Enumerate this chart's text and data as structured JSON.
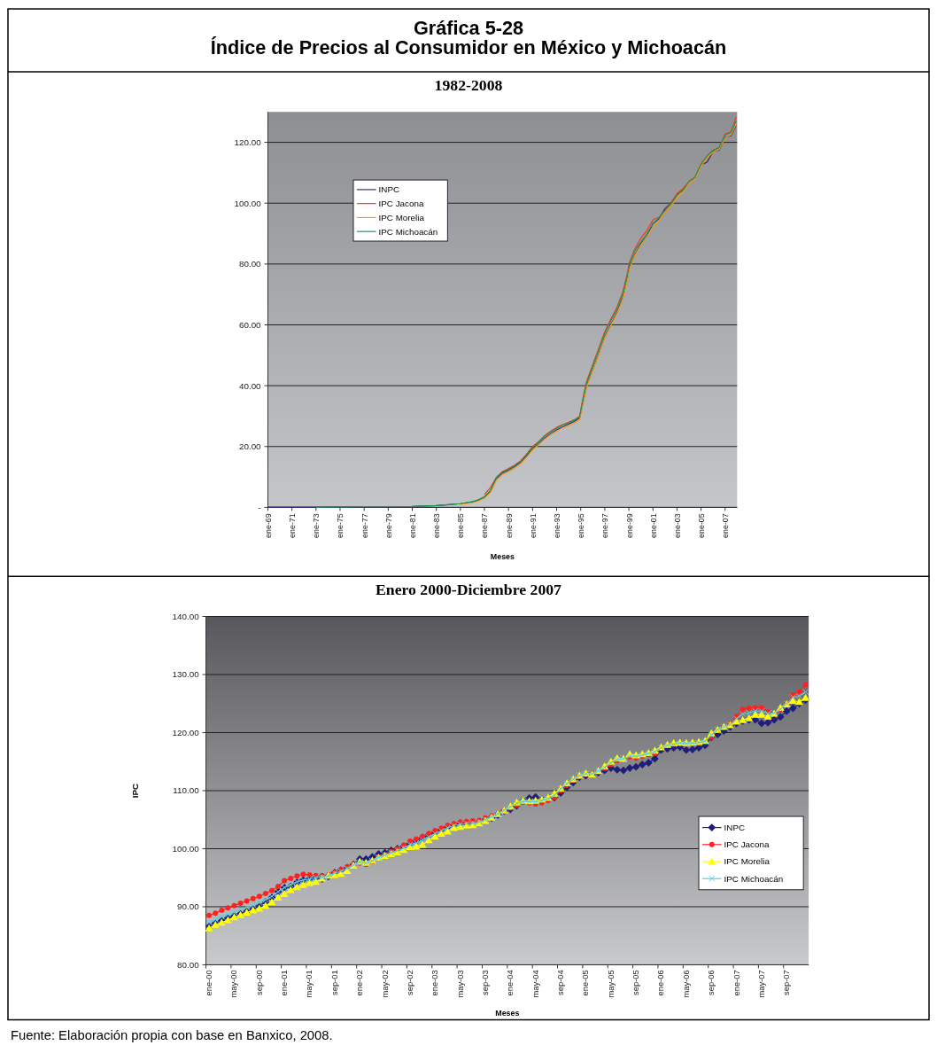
{
  "chart_data": [
    {
      "type": "line",
      "title": "Gráfica 5-28\nÍndice de Precios al Consumidor en México y Michoacán",
      "subtitle": "1982-2008",
      "xlabel": "Meses",
      "xlim": [
        "1969-01",
        "2008-01"
      ],
      "xticks": [
        {
          "value": "1969-01",
          "label": "ene-69"
        },
        {
          "value": "1971-01",
          "label": "ene-71"
        },
        {
          "value": "1973-01",
          "label": "ene-73"
        },
        {
          "value": "1975-01",
          "label": "ene-75"
        },
        {
          "value": "1977-01",
          "label": "ene-77"
        },
        {
          "value": "1979-01",
          "label": "ene-79"
        },
        {
          "value": "1981-01",
          "label": "ene-81"
        },
        {
          "value": "1983-01",
          "label": "ene-83"
        },
        {
          "value": "1985-01",
          "label": "ene-85"
        },
        {
          "value": "1987-01",
          "label": "ene-87"
        },
        {
          "value": "1989-01",
          "label": "ene-89"
        },
        {
          "value": "1991-01",
          "label": "ene-91"
        },
        {
          "value": "1993-01",
          "label": "ene-93"
        },
        {
          "value": "1995-01",
          "label": "ene-95"
        },
        {
          "value": "1997-01",
          "label": "ene-97"
        },
        {
          "value": "1999-01",
          "label": "ene-99"
        },
        {
          "value": "2001-01",
          "label": "ene-01"
        },
        {
          "value": "2003-01",
          "label": "ene-03"
        },
        {
          "value": "2005-01",
          "label": "ene-05"
        },
        {
          "value": "2007-01",
          "label": "ene-07"
        }
      ],
      "ylim": [
        0,
        130
      ],
      "yticks": [
        {
          "value": 0,
          "label": "-"
        },
        {
          "value": 20,
          "label": "20.00"
        },
        {
          "value": 40,
          "label": "40.00"
        },
        {
          "value": 60,
          "label": "60.00"
        },
        {
          "value": 80,
          "label": "80.00"
        },
        {
          "value": 100,
          "label": "100.00"
        },
        {
          "value": 120,
          "label": "120.00"
        }
      ],
      "grid": "y",
      "legend": "top left",
      "series": [
        {
          "name": "INPC",
          "color": "#2b2b8c",
          "x": [
            "1969-01",
            "1973-01",
            "1977-01",
            "1981-01",
            "1983-01",
            "1984-01",
            "1985-01",
            "1986-01",
            "1986-07",
            "1987-01",
            "1987-07",
            "1988-01",
            "1988-07",
            "1989-01",
            "1989-07",
            "1990-01",
            "1990-07",
            "1991-01",
            "1991-07",
            "1992-01",
            "1992-07",
            "1993-01",
            "1993-07",
            "1994-01",
            "1994-07",
            "1994-12",
            "1995-03",
            "1995-07",
            "1996-01",
            "1996-07",
            "1997-01",
            "1997-07",
            "1998-01",
            "1998-07",
            "1998-12",
            "1999-01",
            "1999-07",
            "2000-01",
            "2000-07",
            "2001-01",
            "2001-07",
            "2002-01",
            "2002-07",
            "2003-01",
            "2003-07",
            "2004-01",
            "2004-07",
            "2005-01",
            "2005-07",
            "2006-01",
            "2006-07",
            "2007-01",
            "2007-07",
            "2007-12"
          ],
          "values": [
            0.1,
            0.1,
            0.2,
            0.3,
            0.6,
            0.9,
            1.2,
            1.8,
            2.4,
            3.4,
            5.3,
            9.5,
            11.3,
            12.2,
            13.4,
            14.8,
            16.9,
            19.3,
            20.9,
            22.7,
            24.2,
            25.5,
            26.4,
            27.4,
            28.3,
            29.5,
            34.0,
            40.0,
            45.3,
            50.5,
            56.1,
            60.1,
            64.0,
            69.0,
            76.0,
            78.5,
            83.0,
            86.7,
            89.2,
            93.3,
            94.8,
            98.2,
            100.0,
            102.9,
            104.3,
            106.8,
            108.5,
            112.6,
            113.5,
            117.0,
            117.4,
            121.6,
            122.2,
            125.6
          ]
        },
        {
          "name": "IPC Jacona",
          "color": "#ff3030",
          "x": [
            "1987-01",
            "1987-07",
            "1988-01",
            "1988-07",
            "1989-01",
            "1989-07",
            "1990-01",
            "1990-07",
            "1991-01",
            "1991-07",
            "1992-01",
            "1992-07",
            "1993-01",
            "1993-07",
            "1994-01",
            "1994-07",
            "1994-12",
            "1995-03",
            "1995-07",
            "1996-01",
            "1996-07",
            "1997-01",
            "1997-07",
            "1998-01",
            "1998-07",
            "1998-12",
            "1999-01",
            "1999-07",
            "2000-01",
            "2000-07",
            "2001-01",
            "2001-07",
            "2002-01",
            "2002-07",
            "2003-01",
            "2003-07",
            "2004-01",
            "2004-07",
            "2005-01",
            "2005-07",
            "2006-01",
            "2006-07",
            "2007-01",
            "2007-07",
            "2007-12"
          ],
          "values": [
            4.2,
            6.5,
            10.0,
            11.8,
            12.8,
            13.9,
            15.3,
            17.5,
            20.0,
            21.6,
            23.6,
            25.0,
            26.3,
            27.2,
            28.0,
            28.9,
            30.0,
            35.5,
            41.5,
            47.0,
            52.3,
            57.8,
            61.8,
            65.7,
            70.8,
            77.5,
            80.0,
            85.0,
            88.5,
            91.0,
            94.5,
            95.4,
            97.5,
            100.0,
            103.1,
            104.8,
            107.0,
            108.3,
            112.8,
            115.5,
            117.4,
            118.2,
            122.8,
            123.4,
            128.3
          ]
        },
        {
          "name": "IPC Morelia",
          "color": "#ff9900",
          "x": [
            "1985-01",
            "1986-01",
            "1986-07",
            "1987-01",
            "1987-07",
            "1988-01",
            "1988-07",
            "1989-01",
            "1989-07",
            "1990-01",
            "1990-07",
            "1991-01",
            "1991-07",
            "1992-01",
            "1992-07",
            "1993-01",
            "1993-07",
            "1994-01",
            "1994-07",
            "1994-12",
            "1995-03",
            "1995-07",
            "1996-01",
            "1996-07",
            "1997-01",
            "1997-07",
            "1998-01",
            "1998-07",
            "1998-12",
            "1999-01",
            "1999-07",
            "2000-01",
            "2000-07",
            "2001-01",
            "2001-07",
            "2002-01",
            "2002-07",
            "2003-01",
            "2003-07",
            "2004-01",
            "2004-07",
            "2005-01",
            "2005-07",
            "2006-01",
            "2006-07",
            "2007-01",
            "2007-07",
            "2007-12"
          ],
          "values": [
            1.0,
            1.5,
            2.1,
            3.0,
            4.9,
            9.0,
            10.8,
            11.7,
            12.9,
            14.3,
            16.4,
            18.9,
            20.6,
            22.4,
            23.9,
            25.1,
            26.1,
            27.0,
            27.8,
            28.9,
            33.8,
            39.6,
            45.0,
            50.2,
            55.8,
            59.8,
            63.6,
            68.5,
            75.5,
            78.0,
            82.8,
            86.3,
            89.0,
            92.2,
            94.3,
            97.0,
            99.0,
            101.8,
            103.7,
            106.6,
            108.0,
            112.2,
            114.8,
            116.8,
            117.7,
            121.4,
            122.6,
            126.0
          ]
        },
        {
          "name": "IPC Michoacán",
          "color": "#1a9a50",
          "x": [
            "1973-01",
            "1977-01",
            "1981-01",
            "1983-01",
            "1984-01",
            "1985-01",
            "1986-01",
            "1986-07",
            "1987-01",
            "1987-07",
            "1988-01",
            "1988-07",
            "1989-01",
            "1989-07",
            "1990-01",
            "1990-07",
            "1991-01",
            "1991-07",
            "1992-01",
            "1992-07",
            "1993-01",
            "1993-07",
            "1994-01",
            "1994-07",
            "1994-12",
            "1995-03",
            "1995-07",
            "1996-01",
            "1996-07",
            "1997-01",
            "1997-07",
            "1998-01",
            "1998-07",
            "1998-12",
            "1999-01",
            "1999-07",
            "2000-01",
            "2000-07",
            "2001-01",
            "2001-07",
            "2002-01",
            "2002-07",
            "2003-01",
            "2003-07",
            "2004-01",
            "2004-07",
            "2005-01",
            "2005-07",
            "2006-01",
            "2006-07",
            "2007-01",
            "2007-07",
            "2007-12"
          ],
          "values": [
            0.1,
            0.2,
            0.3,
            0.6,
            0.9,
            1.2,
            1.9,
            2.5,
            3.5,
            5.5,
            9.8,
            11.6,
            12.5,
            13.7,
            15.1,
            17.3,
            19.8,
            21.4,
            23.3,
            24.8,
            26.0,
            27.0,
            27.8,
            28.7,
            29.8,
            35.0,
            41.0,
            46.5,
            51.8,
            57.3,
            61.3,
            65.1,
            70.1,
            77.0,
            79.5,
            84.4,
            87.3,
            89.9,
            93.3,
            95.1,
            97.7,
            99.7,
            102.6,
            104.4,
            107.2,
            108.6,
            112.9,
            115.5,
            117.4,
            118.3,
            122.4,
            123.4,
            127.0
          ]
        }
      ]
    },
    {
      "type": "line",
      "title": "Enero 2000-Diciembre 2007",
      "xlabel": "Meses",
      "ylabel": "IPC",
      "categories": [
        "ene-00",
        null,
        null,
        null,
        "may-00",
        null,
        null,
        null,
        "sep-00",
        null,
        null,
        null,
        "ene-01",
        null,
        null,
        null,
        "may-01",
        null,
        null,
        null,
        "sep-01",
        null,
        null,
        null,
        "ene-02",
        null,
        null,
        null,
        "may-02",
        null,
        null,
        null,
        "sep-02",
        null,
        null,
        null,
        "ene-03",
        null,
        null,
        null,
        "may-03",
        null,
        null,
        null,
        "sep-03",
        null,
        null,
        null,
        "ene-04",
        null,
        null,
        null,
        "may-04",
        null,
        null,
        null,
        "sep-04",
        null,
        null,
        null,
        "ene-05",
        null,
        null,
        null,
        "may-05",
        null,
        null,
        null,
        "sep-05",
        null,
        null,
        null,
        "ene-06",
        null,
        null,
        null,
        "may-06",
        null,
        null,
        null,
        "sep-06",
        null,
        null,
        null,
        "ene-07",
        null,
        null,
        null,
        "may-07",
        null,
        null,
        null,
        "sep-07",
        null,
        null,
        null
      ],
      "ylim": [
        80,
        140
      ],
      "yticks": [
        {
          "value": 80,
          "label": "80.00"
        },
        {
          "value": 90,
          "label": "90.00"
        },
        {
          "value": 100,
          "label": "100.00"
        },
        {
          "value": 110,
          "label": "110.00"
        },
        {
          "value": 120,
          "label": "120.00"
        },
        {
          "value": 130,
          "label": "130.00"
        },
        {
          "value": 140,
          "label": "140.00"
        }
      ],
      "grid": "y",
      "legend": "right",
      "annotations": [
        "Fuente: Elaboración propia con base en Banxico, 2008."
      ],
      "series": [
        {
          "name": "INPC",
          "color": "#1f1f78",
          "marker": "diamond",
          "values": [
            86.7,
            87.2,
            87.6,
            88.1,
            88.4,
            88.8,
            89.2,
            89.6,
            90.2,
            90.8,
            91.6,
            92.6,
            93.3,
            93.5,
            94.2,
            94.6,
            94.8,
            95.0,
            94.8,
            95.2,
            95.9,
            96.3,
            96.7,
            97.3,
            98.2,
            98.2,
            98.6,
            99.1,
            99.3,
            99.7,
            100.0,
            100.4,
            100.9,
            101.4,
            101.9,
            102.4,
            102.9,
            103.3,
            103.8,
            104.1,
            104.4,
            104.2,
            104.3,
            104.5,
            105.0,
            105.3,
            105.8,
            106.5,
            106.8,
            107.4,
            108.2,
            108.7,
            108.9,
            108.5,
            108.5,
            108.8,
            109.6,
            110.6,
            111.4,
            112.3,
            112.6,
            112.8,
            113.1,
            113.5,
            113.9,
            113.6,
            113.5,
            113.9,
            114.1,
            114.5,
            114.8,
            115.5,
            117.0,
            117.2,
            117.4,
            117.5,
            117.0,
            117.1,
            117.4,
            117.8,
            119.2,
            119.7,
            120.3,
            121.0,
            121.6,
            122.0,
            122.2,
            122.2,
            121.6,
            121.7,
            122.2,
            122.7,
            123.7,
            124.2,
            125.0,
            125.6
          ]
        },
        {
          "name": "IPC Jacona",
          "color": "#ff2020",
          "marker": "circle",
          "values": [
            88.5,
            88.9,
            89.4,
            89.8,
            90.2,
            90.6,
            91.0,
            91.4,
            91.8,
            92.3,
            92.8,
            93.5,
            94.5,
            94.9,
            95.3,
            95.6,
            95.5,
            95.4,
            95.4,
            95.5,
            96.0,
            96.4,
            96.9,
            97.3,
            97.5,
            97.3,
            97.8,
            98.6,
            99.0,
            99.5,
            100.0,
            100.6,
            101.3,
            101.7,
            102.1,
            102.6,
            103.1,
            103.5,
            104.0,
            104.3,
            104.6,
            104.7,
            104.8,
            104.9,
            105.3,
            105.7,
            106.1,
            106.6,
            107.0,
            107.5,
            108.0,
            107.9,
            107.7,
            107.9,
            108.3,
            108.8,
            110.0,
            110.9,
            111.8,
            112.5,
            112.8,
            113.0,
            113.3,
            113.8,
            114.5,
            115.2,
            115.5,
            115.8,
            115.6,
            115.9,
            116.2,
            116.4,
            117.4,
            117.8,
            118.0,
            118.1,
            118.0,
            118.1,
            118.2,
            118.5,
            119.2,
            120.4,
            121.0,
            121.5,
            122.8,
            124.0,
            124.2,
            124.3,
            124.3,
            123.6,
            123.4,
            123.9,
            125.0,
            126.5,
            127.0,
            128.3
          ]
        },
        {
          "name": "IPC Morelia",
          "color": "#ffff00",
          "marker": "triangle",
          "values": [
            86.3,
            86.9,
            87.3,
            87.7,
            88.2,
            88.6,
            89.0,
            89.4,
            89.7,
            90.2,
            90.8,
            91.6,
            92.2,
            92.9,
            93.4,
            93.8,
            94.1,
            94.3,
            94.9,
            95.4,
            95.5,
            95.7,
            96.2,
            97.1,
            97.8,
            97.6,
            98.0,
            98.5,
            98.8,
            99.1,
            99.4,
            99.8,
            100.3,
            100.4,
            100.7,
            101.5,
            102.1,
            102.6,
            103.0,
            103.6,
            103.8,
            104.0,
            104.1,
            104.4,
            104.8,
            105.4,
            106.0,
            106.6,
            107.3,
            108.0,
            108.3,
            108.2,
            108.3,
            108.5,
            108.8,
            109.5,
            110.4,
            111.3,
            112.0,
            112.6,
            113.0,
            112.8,
            113.4,
            114.2,
            115.0,
            115.6,
            115.5,
            116.3,
            116.1,
            116.3,
            116.5,
            116.9,
            117.5,
            117.9,
            118.2,
            118.3,
            118.2,
            118.3,
            118.4,
            118.6,
            119.9,
            120.5,
            121.0,
            121.3,
            121.9,
            122.2,
            122.5,
            123.1,
            123.1,
            122.8,
            123.3,
            124.3,
            124.9,
            125.5,
            125.3,
            126.0
          ]
        },
        {
          "name": "IPC Michoacán",
          "color": "#66c8dc",
          "marker": "cross",
          "values": [
            87.3,
            87.8,
            88.3,
            88.7,
            89.1,
            89.5,
            89.9,
            90.3,
            90.7,
            91.2,
            91.8,
            92.6,
            93.3,
            93.8,
            94.3,
            94.6,
            94.8,
            95.0,
            95.1,
            95.3,
            95.8,
            96.1,
            96.6,
            97.2,
            97.7,
            97.5,
            97.9,
            98.5,
            98.9,
            99.3,
            99.7,
            100.1,
            100.7,
            101.0,
            101.5,
            102.0,
            102.6,
            103.1,
            103.6,
            104.0,
            104.2,
            104.3,
            104.4,
            104.6,
            105.0,
            105.5,
            106.0,
            106.6,
            107.2,
            107.8,
            108.1,
            108.1,
            108.1,
            108.3,
            108.6,
            109.2,
            110.3,
            111.2,
            112.0,
            112.6,
            112.9,
            112.9,
            113.4,
            114.0,
            114.8,
            115.4,
            115.5,
            116.0,
            115.9,
            116.1,
            116.4,
            116.7,
            117.4,
            117.8,
            118.0,
            118.2,
            118.1,
            118.2,
            118.3,
            118.5,
            119.6,
            120.5,
            121.0,
            121.4,
            122.4,
            123.2,
            123.4,
            123.7,
            123.7,
            123.3,
            123.4,
            124.0,
            125.0,
            126.1,
            126.3,
            127.0
          ]
        }
      ]
    }
  ]
}
